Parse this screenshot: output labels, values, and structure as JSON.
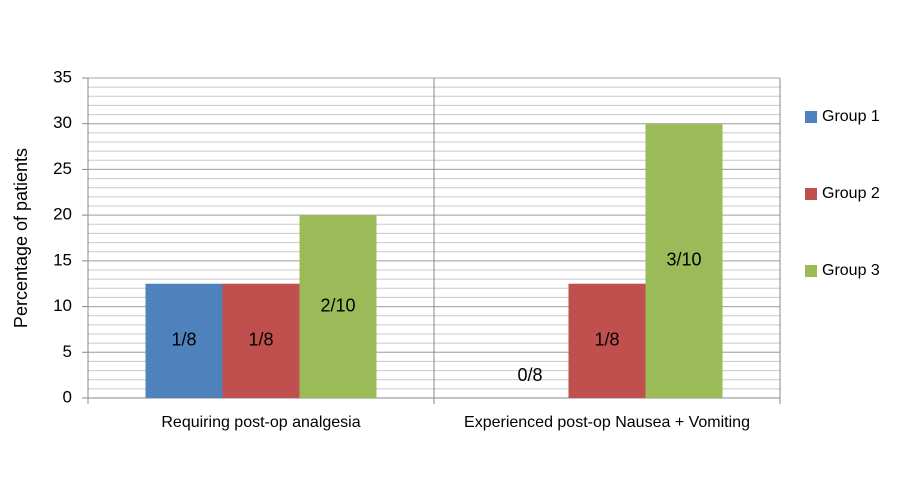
{
  "chart_data": {
    "type": "bar",
    "y_label": "Percentage of patients",
    "categories": [
      "Requiring post-op analgesia",
      "Experienced post-op Nausea + Vomiting"
    ],
    "series": [
      {
        "name": "Group 1",
        "color": "#4f81bd",
        "values": [
          12.5,
          0
        ],
        "value_labels": [
          "1/8",
          "0/8"
        ]
      },
      {
        "name": "Group 2",
        "color": "#c0504d",
        "values": [
          12.5,
          12.5
        ],
        "value_labels": [
          "1/8",
          "1/8"
        ]
      },
      {
        "name": "Group 3",
        "color": "#9bbb59",
        "values": [
          20,
          30
        ],
        "value_labels": [
          "2/10",
          "3/10"
        ]
      }
    ],
    "ylim": [
      0,
      35
    ],
    "yticks": [
      0,
      5,
      10,
      15,
      20,
      25,
      30,
      35
    ],
    "grid": true,
    "grid_step": 1,
    "legend": "right"
  }
}
